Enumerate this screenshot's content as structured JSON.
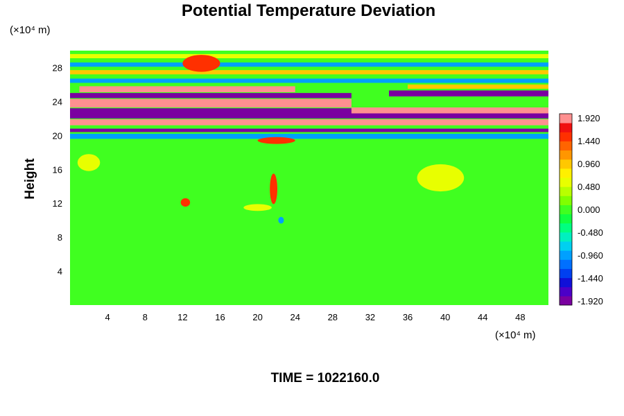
{
  "chart_data": {
    "type": "heatmap",
    "title": "Potential Temperature Deviation",
    "ylabel": "Height",
    "y_unit_label": "(×10⁴ m)",
    "x_unit_label": "(×10⁴ m)",
    "footer": "TIME = 1022160.0",
    "xlim": [
      0,
      51
    ],
    "ylim": [
      0,
      30
    ],
    "x_ticks": [
      "4",
      "8",
      "12",
      "16",
      "20",
      "24",
      "28",
      "32",
      "36",
      "40",
      "44",
      "48"
    ],
    "y_ticks": [
      "4",
      "8",
      "12",
      "16",
      "20",
      "24",
      "28"
    ],
    "colorbar": {
      "range": [
        -1.92,
        1.92
      ],
      "tick_labels": [
        "1.920",
        "1.440",
        "0.960",
        "0.480",
        "0.000",
        "-0.480",
        "-0.960",
        "-1.440",
        "-1.920"
      ],
      "colors": [
        "#7a00a0",
        "#4b00c8",
        "#1010d8",
        "#0040f0",
        "#0070ff",
        "#00a0ff",
        "#00d0f0",
        "#00f0c0",
        "#00ff80",
        "#10ff40",
        "#40ff20",
        "#80ff00",
        "#b8ff00",
        "#e8ff00",
        "#fff000",
        "#ffc800",
        "#ff9600",
        "#ff6400",
        "#ff3000",
        "#f01010",
        "#ff9090"
      ]
    },
    "background_value": 0.0,
    "features": [
      {
        "kind": "band",
        "x": [
          0,
          51
        ],
        "y": [
          20.4,
          20.8
        ],
        "value": -1.92
      },
      {
        "kind": "band",
        "x": [
          0,
          51
        ],
        "y": [
          21.2,
          21.9
        ],
        "value": 1.92
      },
      {
        "kind": "band",
        "x": [
          0,
          51
        ],
        "y": [
          22.0,
          23.2
        ],
        "value": -1.92
      },
      {
        "kind": "band",
        "x": [
          0,
          30
        ],
        "y": [
          23.3,
          24.3
        ],
        "value": 1.92
      },
      {
        "kind": "band",
        "x": [
          30,
          51
        ],
        "y": [
          22.6,
          23.3
        ],
        "value": 1.92
      },
      {
        "kind": "band",
        "x": [
          0,
          30
        ],
        "y": [
          24.4,
          25.0
        ],
        "value": -1.92
      },
      {
        "kind": "band",
        "x": [
          1,
          24
        ],
        "y": [
          25.1,
          25.8
        ],
        "value": 1.92
      },
      {
        "kind": "band",
        "x": [
          34,
          51
        ],
        "y": [
          24.6,
          25.3
        ],
        "value": -1.92
      },
      {
        "kind": "band",
        "x": [
          36,
          51
        ],
        "y": [
          25.5,
          26.0
        ],
        "value": 0.96
      },
      {
        "kind": "band",
        "x": [
          0,
          51
        ],
        "y": [
          26.2,
          26.7
        ],
        "value": -0.96
      },
      {
        "kind": "band",
        "x": [
          0,
          51
        ],
        "y": [
          27.2,
          27.7
        ],
        "value": 0.96
      },
      {
        "kind": "band",
        "x": [
          0,
          51
        ],
        "y": [
          28.1,
          28.6
        ],
        "value": -0.96
      },
      {
        "kind": "band",
        "x": [
          0,
          51
        ],
        "y": [
          29.1,
          29.6
        ],
        "value": 0.48
      },
      {
        "kind": "band",
        "x": [
          0,
          51
        ],
        "y": [
          19.6,
          20.2
        ],
        "value": -0.96
      },
      {
        "kind": "blob",
        "x": 12.3,
        "y": 12.1,
        "rx": 0.5,
        "ry": 0.5,
        "value": 1.44
      },
      {
        "kind": "blob",
        "x": 21.7,
        "y": 13.7,
        "rx": 0.4,
        "ry": 1.8,
        "value": 1.44
      },
      {
        "kind": "blob",
        "x": 40.0,
        "y": 14.3,
        "rx": 0.6,
        "ry": 0.7,
        "value": 1.44
      },
      {
        "kind": "blob",
        "x": 39.5,
        "y": 15.0,
        "rx": 2.5,
        "ry": 1.6,
        "value": 0.48
      },
      {
        "kind": "blob",
        "x": 22.5,
        "y": 10.0,
        "rx": 0.3,
        "ry": 0.4,
        "value": -0.96
      },
      {
        "kind": "blob",
        "x": 20.0,
        "y": 11.5,
        "rx": 1.5,
        "ry": 0.4,
        "value": 0.48
      },
      {
        "kind": "blob",
        "x": 14.0,
        "y": 28.5,
        "rx": 2.0,
        "ry": 1.0,
        "value": 1.44
      },
      {
        "kind": "blob",
        "x": 22.0,
        "y": 19.4,
        "rx": 2.0,
        "ry": 0.4,
        "value": 1.44
      },
      {
        "kind": "blob",
        "x": 2.0,
        "y": 16.8,
        "rx": 1.2,
        "ry": 1.0,
        "value": 0.48
      }
    ]
  }
}
